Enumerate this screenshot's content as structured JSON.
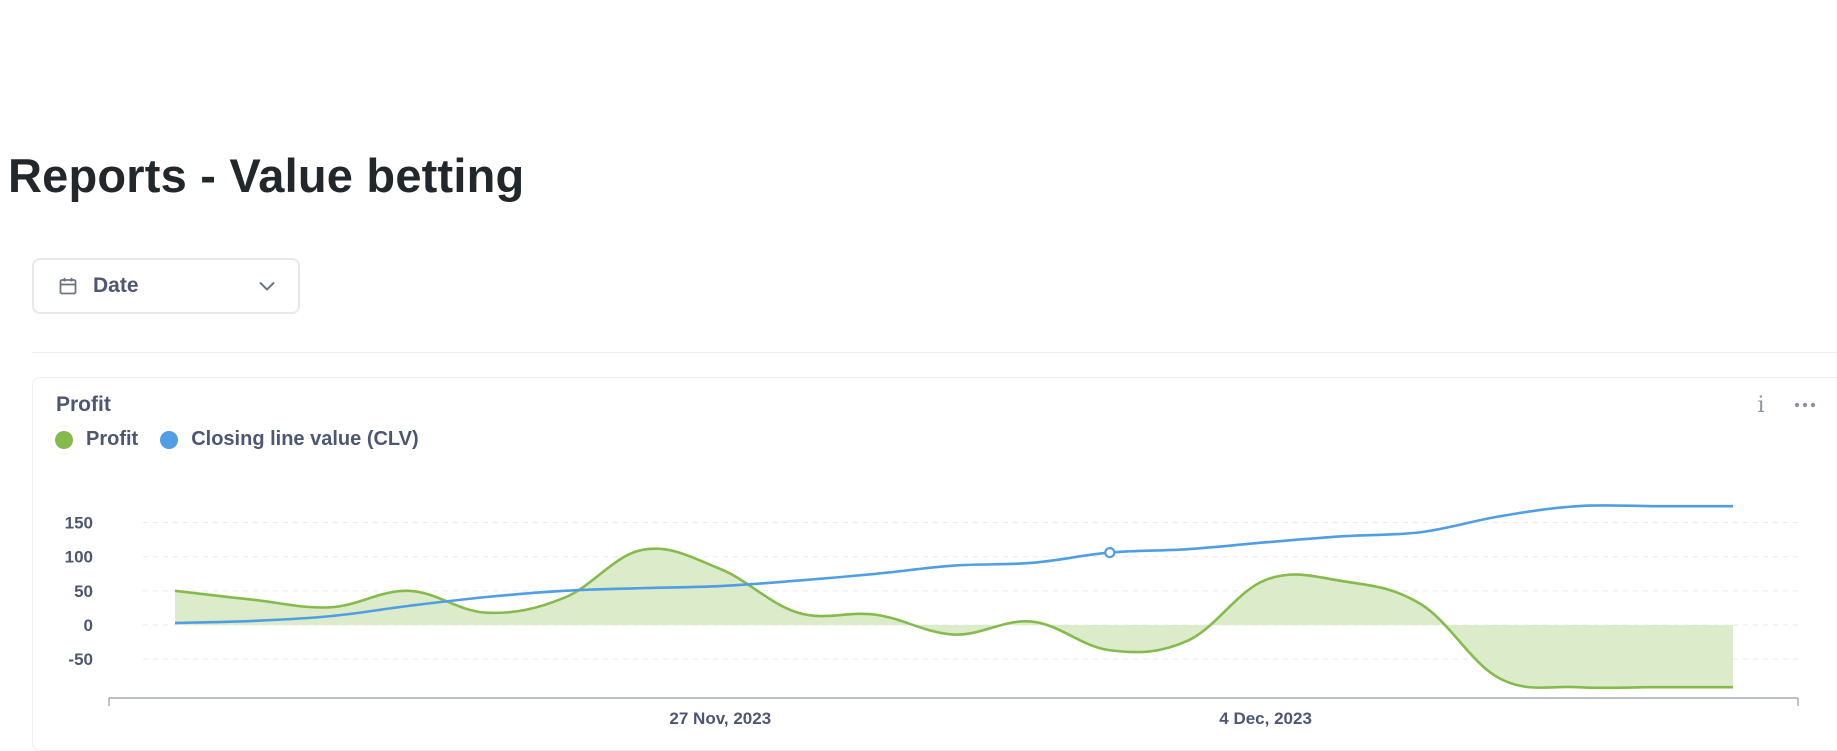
{
  "page": {
    "title": "Reports - Value betting"
  },
  "filter": {
    "label": "Date",
    "icon": "calendar-icon"
  },
  "card": {
    "title": "Profit",
    "info_icon": "info-icon",
    "more_icon": "more-icon"
  },
  "colors": {
    "profit": "#84bb4c",
    "profit_fill": "#dcebc9",
    "clv": "#509ee3"
  },
  "chart_data": {
    "type": "line",
    "legend_position": "top-left",
    "grid": true,
    "x": [
      "2023-11-20",
      "2023-11-21",
      "2023-11-22",
      "2023-11-23",
      "2023-11-24",
      "2023-11-25",
      "2023-11-26",
      "2023-11-27",
      "2023-11-28",
      "2023-11-29",
      "2023-11-30",
      "2023-12-01",
      "2023-12-02",
      "2023-12-03",
      "2023-12-04",
      "2023-12-05",
      "2023-12-06",
      "2023-12-07",
      "2023-12-08",
      "2023-12-09",
      "2023-12-10"
    ],
    "x_ticks": [
      {
        "label": "27 Nov, 2023",
        "index": 7
      },
      {
        "label": "4 Dec, 2023",
        "index": 14
      }
    ],
    "y_ticks": [
      150,
      100,
      50,
      0,
      -50
    ],
    "y_tick_labels": [
      "150",
      "100",
      "50",
      "0",
      "-50"
    ],
    "ylim": [
      -91,
      169
    ],
    "highlighted_point": {
      "series": 1,
      "index": 12
    },
    "series": [
      {
        "name": "Profit",
        "type": "area",
        "values": [
          50,
          37,
          26,
          50,
          18,
          40,
          110,
          82,
          18,
          15,
          -14,
          5,
          -37,
          -23,
          66,
          64,
          30,
          -78,
          -91,
          -91,
          -91
        ]
      },
      {
        "name": "Closing line value (CLV)",
        "type": "line",
        "values": [
          3,
          6,
          13,
          28,
          41,
          50,
          54,
          57,
          65,
          75,
          87,
          91,
          106,
          111,
          121,
          130,
          136,
          159,
          174,
          174,
          174
        ]
      }
    ]
  }
}
